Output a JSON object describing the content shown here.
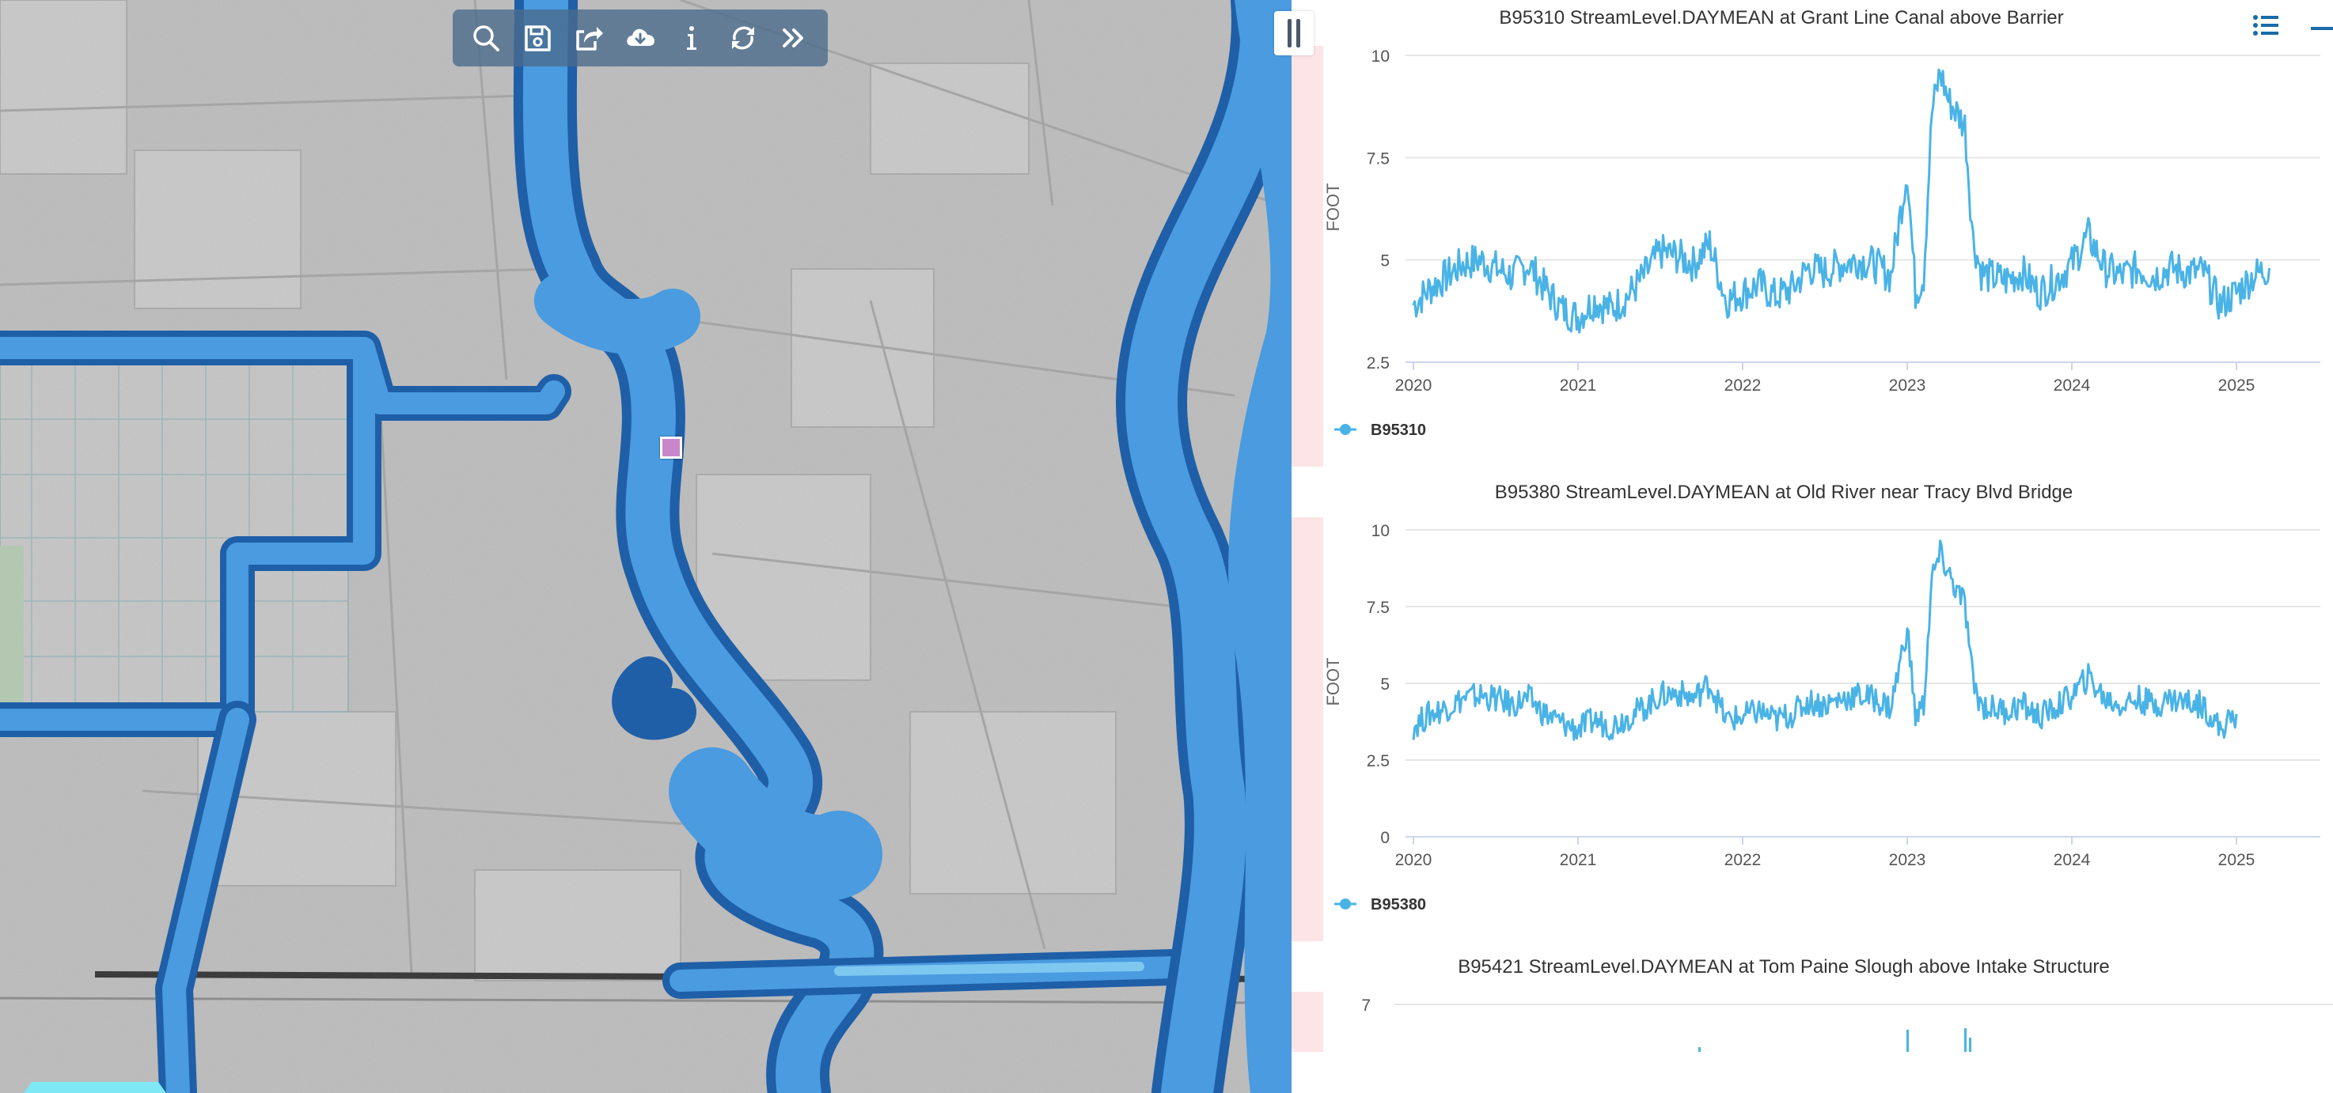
{
  "toolbar": {
    "icons": [
      "search-icon",
      "save-icon",
      "share-icon",
      "cloud-download-icon",
      "info-icon",
      "refresh-icon",
      "double-chevron-right-icon"
    ]
  },
  "colors": {
    "water": "#4a9be0",
    "water_edge": "#1f5fa8",
    "water_light": "#7ec8f0",
    "terrain": "#bdbdbd",
    "series": "#4ab3e6",
    "marker": "#c987c9",
    "pink_strip": "#fde4e6"
  },
  "chart_data": [
    {
      "type": "line",
      "title": "B95310 StreamLevel.DAYMEAN at Grant Line Canal above Barrier",
      "ylabel": "FOOT",
      "xlabel": "",
      "yticks": [
        "10",
        "7.5",
        "5",
        "2.5"
      ],
      "xticks": [
        "2020",
        "2021",
        "2022",
        "2023",
        "2024",
        "2025"
      ],
      "ylim": [
        2.5,
        10
      ],
      "xlim": [
        2020,
        2025.5
      ],
      "grid": true,
      "legend": "bottom-left",
      "series": [
        {
          "name": "B95310",
          "x": [
            2020.0,
            2020.1,
            2020.2,
            2020.3,
            2020.4,
            2020.5,
            2020.6,
            2020.7,
            2020.8,
            2020.9,
            2021.0,
            2021.1,
            2021.2,
            2021.3,
            2021.4,
            2021.5,
            2021.6,
            2021.7,
            2021.8,
            2021.9,
            2022.0,
            2022.1,
            2022.2,
            2022.3,
            2022.4,
            2022.5,
            2022.6,
            2022.7,
            2022.8,
            2022.9,
            2023.0,
            2023.05,
            2023.1,
            2023.15,
            2023.2,
            2023.25,
            2023.3,
            2023.35,
            2023.4,
            2023.45,
            2023.5,
            2023.6,
            2023.7,
            2023.8,
            2023.9,
            2024.0,
            2024.1,
            2024.2,
            2024.3,
            2024.4,
            2024.5,
            2024.6,
            2024.7,
            2024.8,
            2024.9,
            2025.0,
            2025.1,
            2025.2
          ],
          "values": [
            3.9,
            4.3,
            4.6,
            4.9,
            5.0,
            4.8,
            4.6,
            4.9,
            4.3,
            3.8,
            3.6,
            4.0,
            3.8,
            4.1,
            4.6,
            5.2,
            5.1,
            4.9,
            5.4,
            4.0,
            4.2,
            4.4,
            4.1,
            4.3,
            4.8,
            4.7,
            4.9,
            5.0,
            4.9,
            4.6,
            7.2,
            4.2,
            4.6,
            8.6,
            9.6,
            8.9,
            8.6,
            8.3,
            5.5,
            4.7,
            4.6,
            4.5,
            4.7,
            4.2,
            4.5,
            4.9,
            5.6,
            4.8,
            4.6,
            4.8,
            4.6,
            4.8,
            4.7,
            4.7,
            3.9,
            4.2,
            4.6,
            4.8
          ]
        }
      ]
    },
    {
      "type": "line",
      "title": "B95380 StreamLevel.DAYMEAN at Old River near Tracy Blvd Bridge",
      "ylabel": "FOOT",
      "xlabel": "",
      "yticks": [
        "10",
        "7.5",
        "5",
        "2.5",
        "0"
      ],
      "xticks": [
        "2020",
        "2021",
        "2022",
        "2023",
        "2024",
        "2025"
      ],
      "ylim": [
        0,
        10
      ],
      "xlim": [
        2020,
        2025.5
      ],
      "grid": true,
      "legend": "bottom-left",
      "series": [
        {
          "name": "B95380",
          "x": [
            2020.0,
            2020.1,
            2020.2,
            2020.3,
            2020.4,
            2020.5,
            2020.6,
            2020.7,
            2020.8,
            2020.9,
            2021.0,
            2021.1,
            2021.2,
            2021.3,
            2021.4,
            2021.5,
            2021.6,
            2021.7,
            2021.8,
            2021.9,
            2022.0,
            2022.1,
            2022.2,
            2022.3,
            2022.4,
            2022.5,
            2022.6,
            2022.7,
            2022.8,
            2022.9,
            2023.0,
            2023.05,
            2023.1,
            2023.15,
            2023.2,
            2023.25,
            2023.3,
            2023.35,
            2023.4,
            2023.45,
            2023.5,
            2023.6,
            2023.7,
            2023.8,
            2023.9,
            2024.0,
            2024.1,
            2024.2,
            2024.3,
            2024.4,
            2024.5,
            2024.6,
            2024.7,
            2024.8,
            2024.9,
            2025.0
          ],
          "values": [
            3.6,
            4.0,
            4.2,
            4.5,
            4.6,
            4.5,
            4.3,
            4.5,
            4.0,
            3.7,
            3.5,
            3.8,
            3.6,
            3.9,
            4.2,
            4.6,
            4.7,
            4.5,
            5.0,
            3.8,
            3.9,
            4.1,
            3.8,
            4.0,
            4.4,
            4.3,
            4.5,
            4.6,
            4.5,
            4.2,
            6.8,
            3.9,
            4.3,
            8.4,
            9.2,
            8.6,
            8.0,
            7.6,
            5.0,
            4.3,
            4.2,
            4.1,
            4.3,
            3.9,
            4.2,
            4.6,
            5.2,
            4.5,
            4.3,
            4.5,
            4.3,
            4.5,
            4.4,
            4.3,
            3.5,
            4.0
          ]
        }
      ]
    },
    {
      "type": "line",
      "title": "B95421 StreamLevel.DAYMEAN at Tom Paine Slough above Intake Structure",
      "ylabel": "",
      "xlabel": "",
      "yticks": [
        "7"
      ],
      "xticks": [],
      "ylim": [
        0,
        7
      ],
      "grid": true,
      "series": []
    }
  ]
}
